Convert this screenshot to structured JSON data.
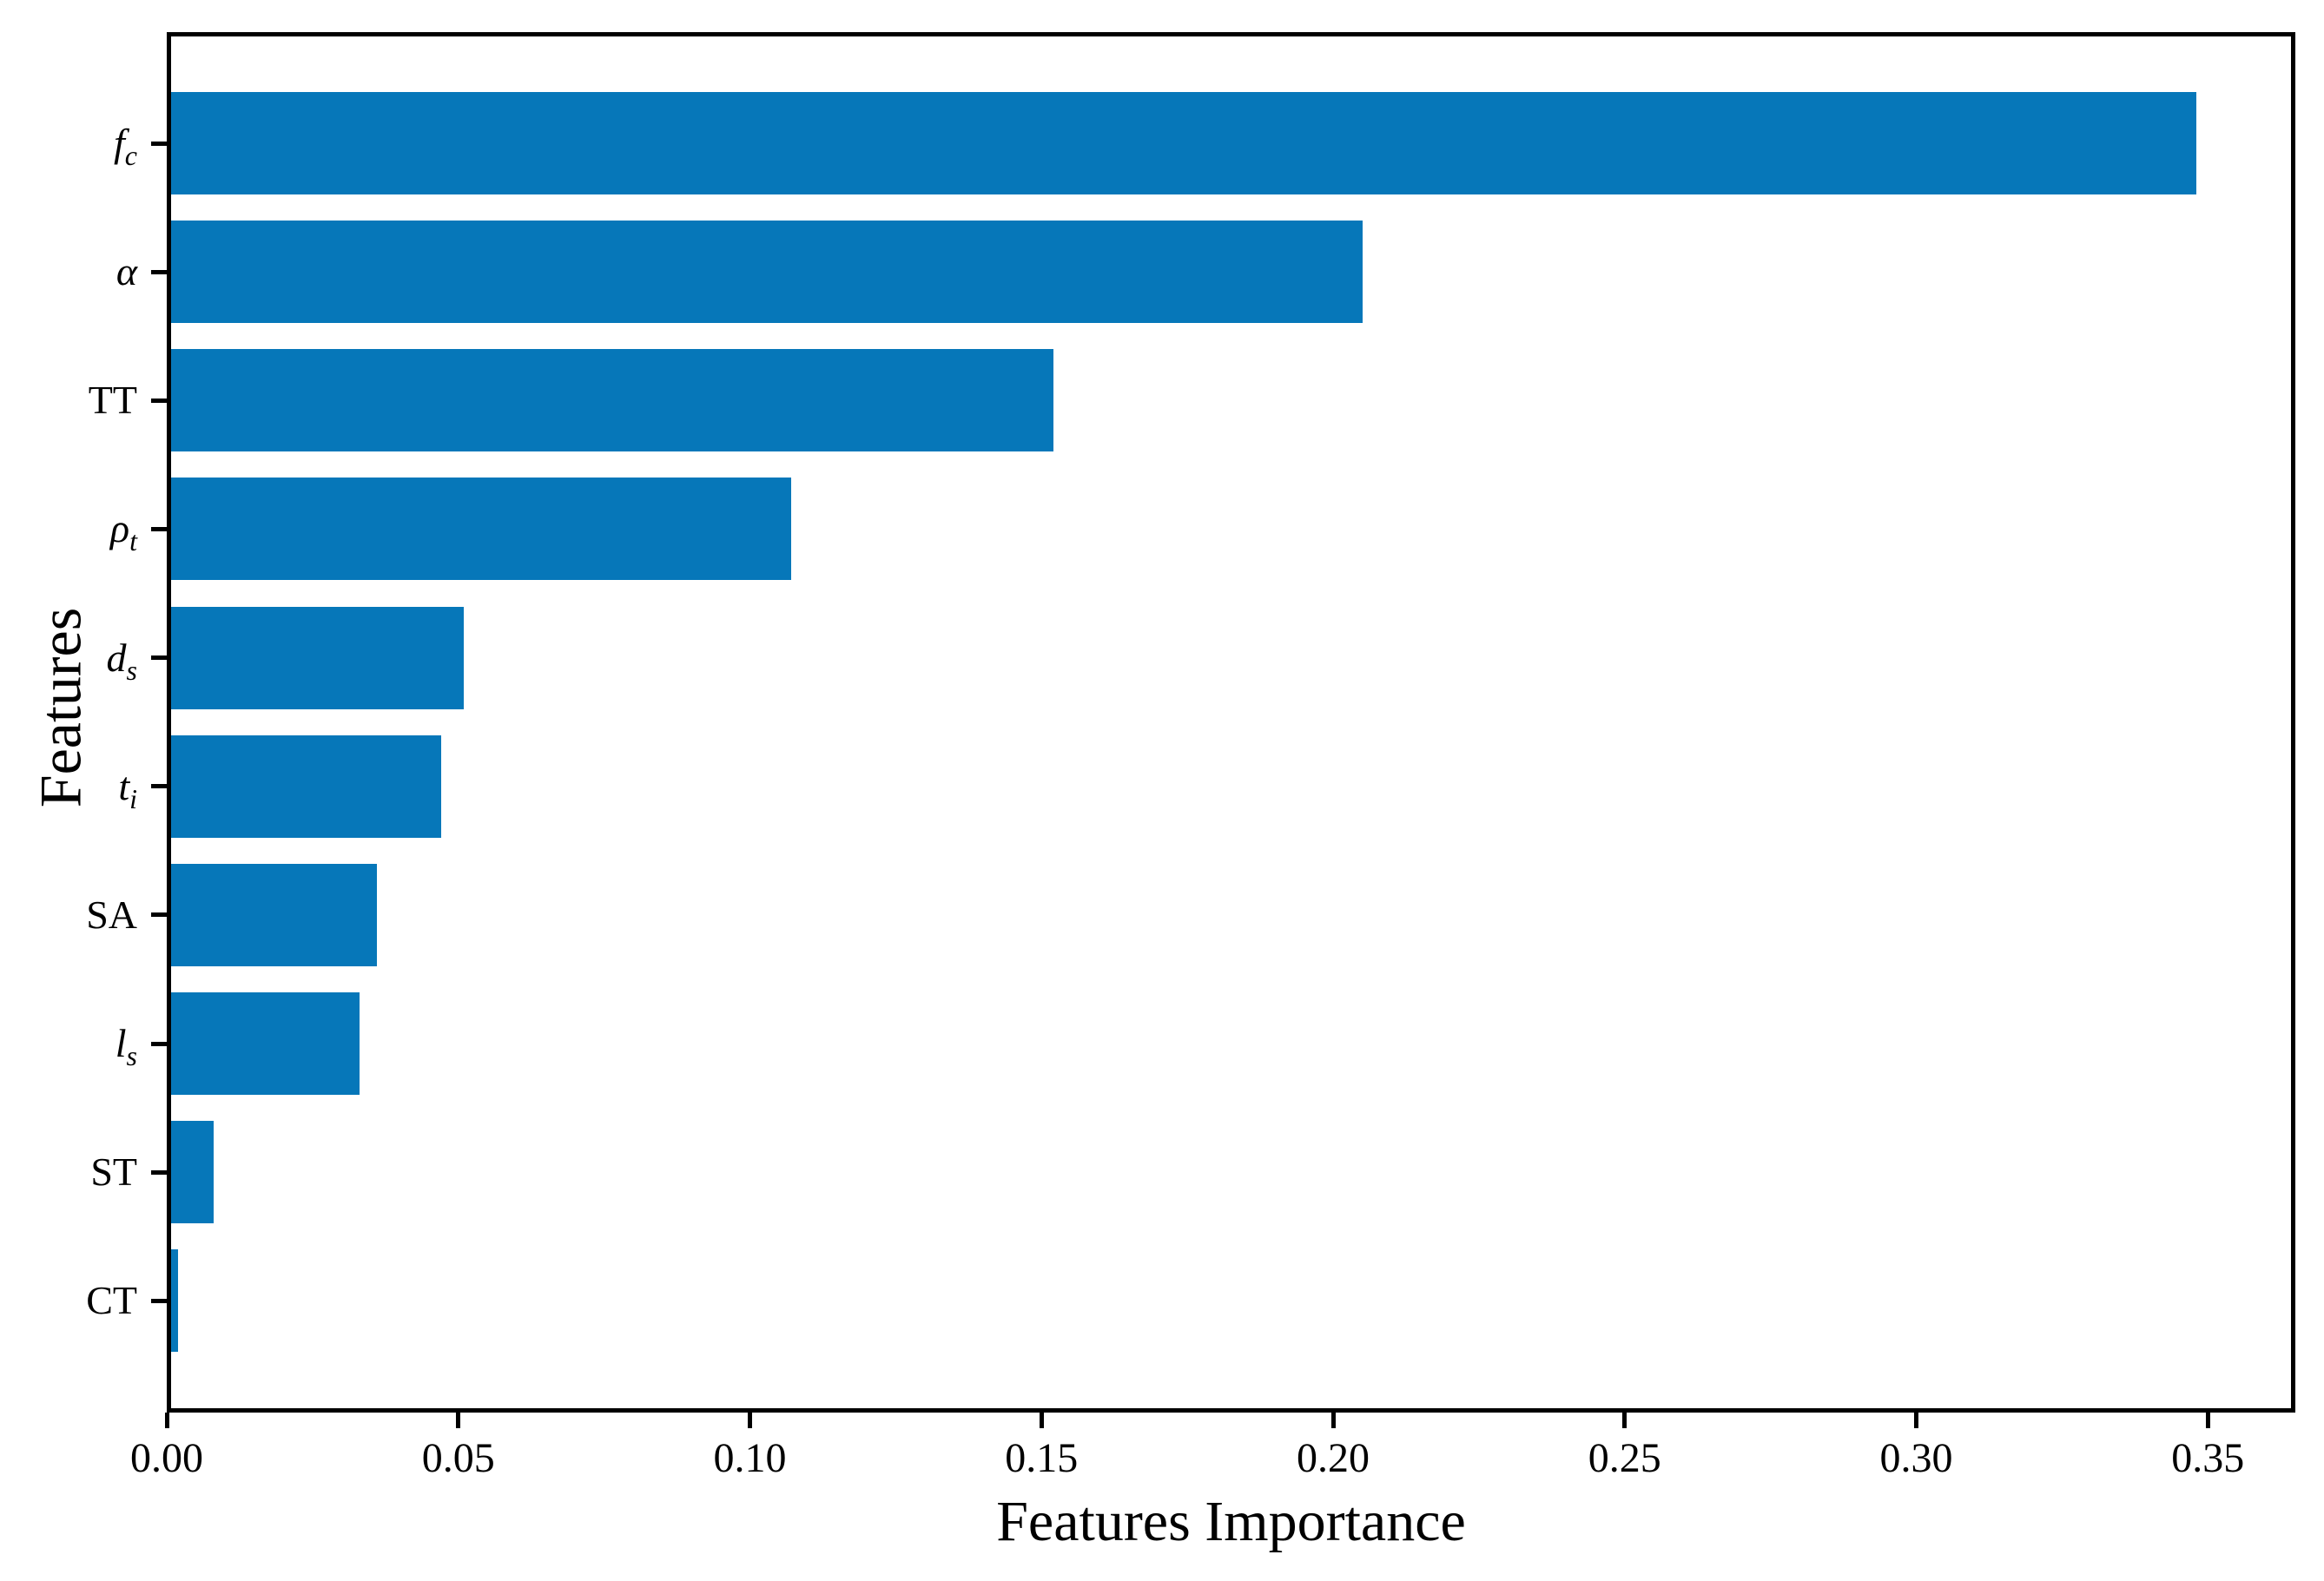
{
  "chart_data": {
    "type": "bar",
    "orientation": "horizontal",
    "title": "",
    "xlabel": "Features Importance",
    "ylabel": "Features",
    "categories": [
      {
        "base": "f",
        "sub": "c",
        "italic": true
      },
      {
        "base": "α",
        "sub": "",
        "italic": true
      },
      {
        "base": "TT",
        "sub": "",
        "italic": false
      },
      {
        "base": "ρ",
        "sub": "t",
        "italic": true
      },
      {
        "base": "d",
        "sub": "s",
        "italic": true
      },
      {
        "base": "t",
        "sub": "i",
        "italic": true
      },
      {
        "base": "SA",
        "sub": "",
        "italic": false
      },
      {
        "base": "l",
        "sub": "s",
        "italic": true
      },
      {
        "base": "ST",
        "sub": "",
        "italic": false
      },
      {
        "base": "CT",
        "sub": "",
        "italic": false
      }
    ],
    "values": [
      0.348,
      0.205,
      0.152,
      0.107,
      0.051,
      0.047,
      0.036,
      0.033,
      0.008,
      0.002
    ],
    "x_ticks": {
      "labels": [
        "0.00",
        "0.05",
        "0.10",
        "0.15",
        "0.20",
        "0.25",
        "0.30",
        "0.35"
      ],
      "values": [
        0.0,
        0.05,
        0.1,
        0.15,
        0.2,
        0.25,
        0.3,
        0.35
      ]
    },
    "xlim": [
      0,
      0.365
    ],
    "grid": false,
    "legend": "none",
    "bar_color": "#0677b9",
    "axis_color": "#000000"
  }
}
